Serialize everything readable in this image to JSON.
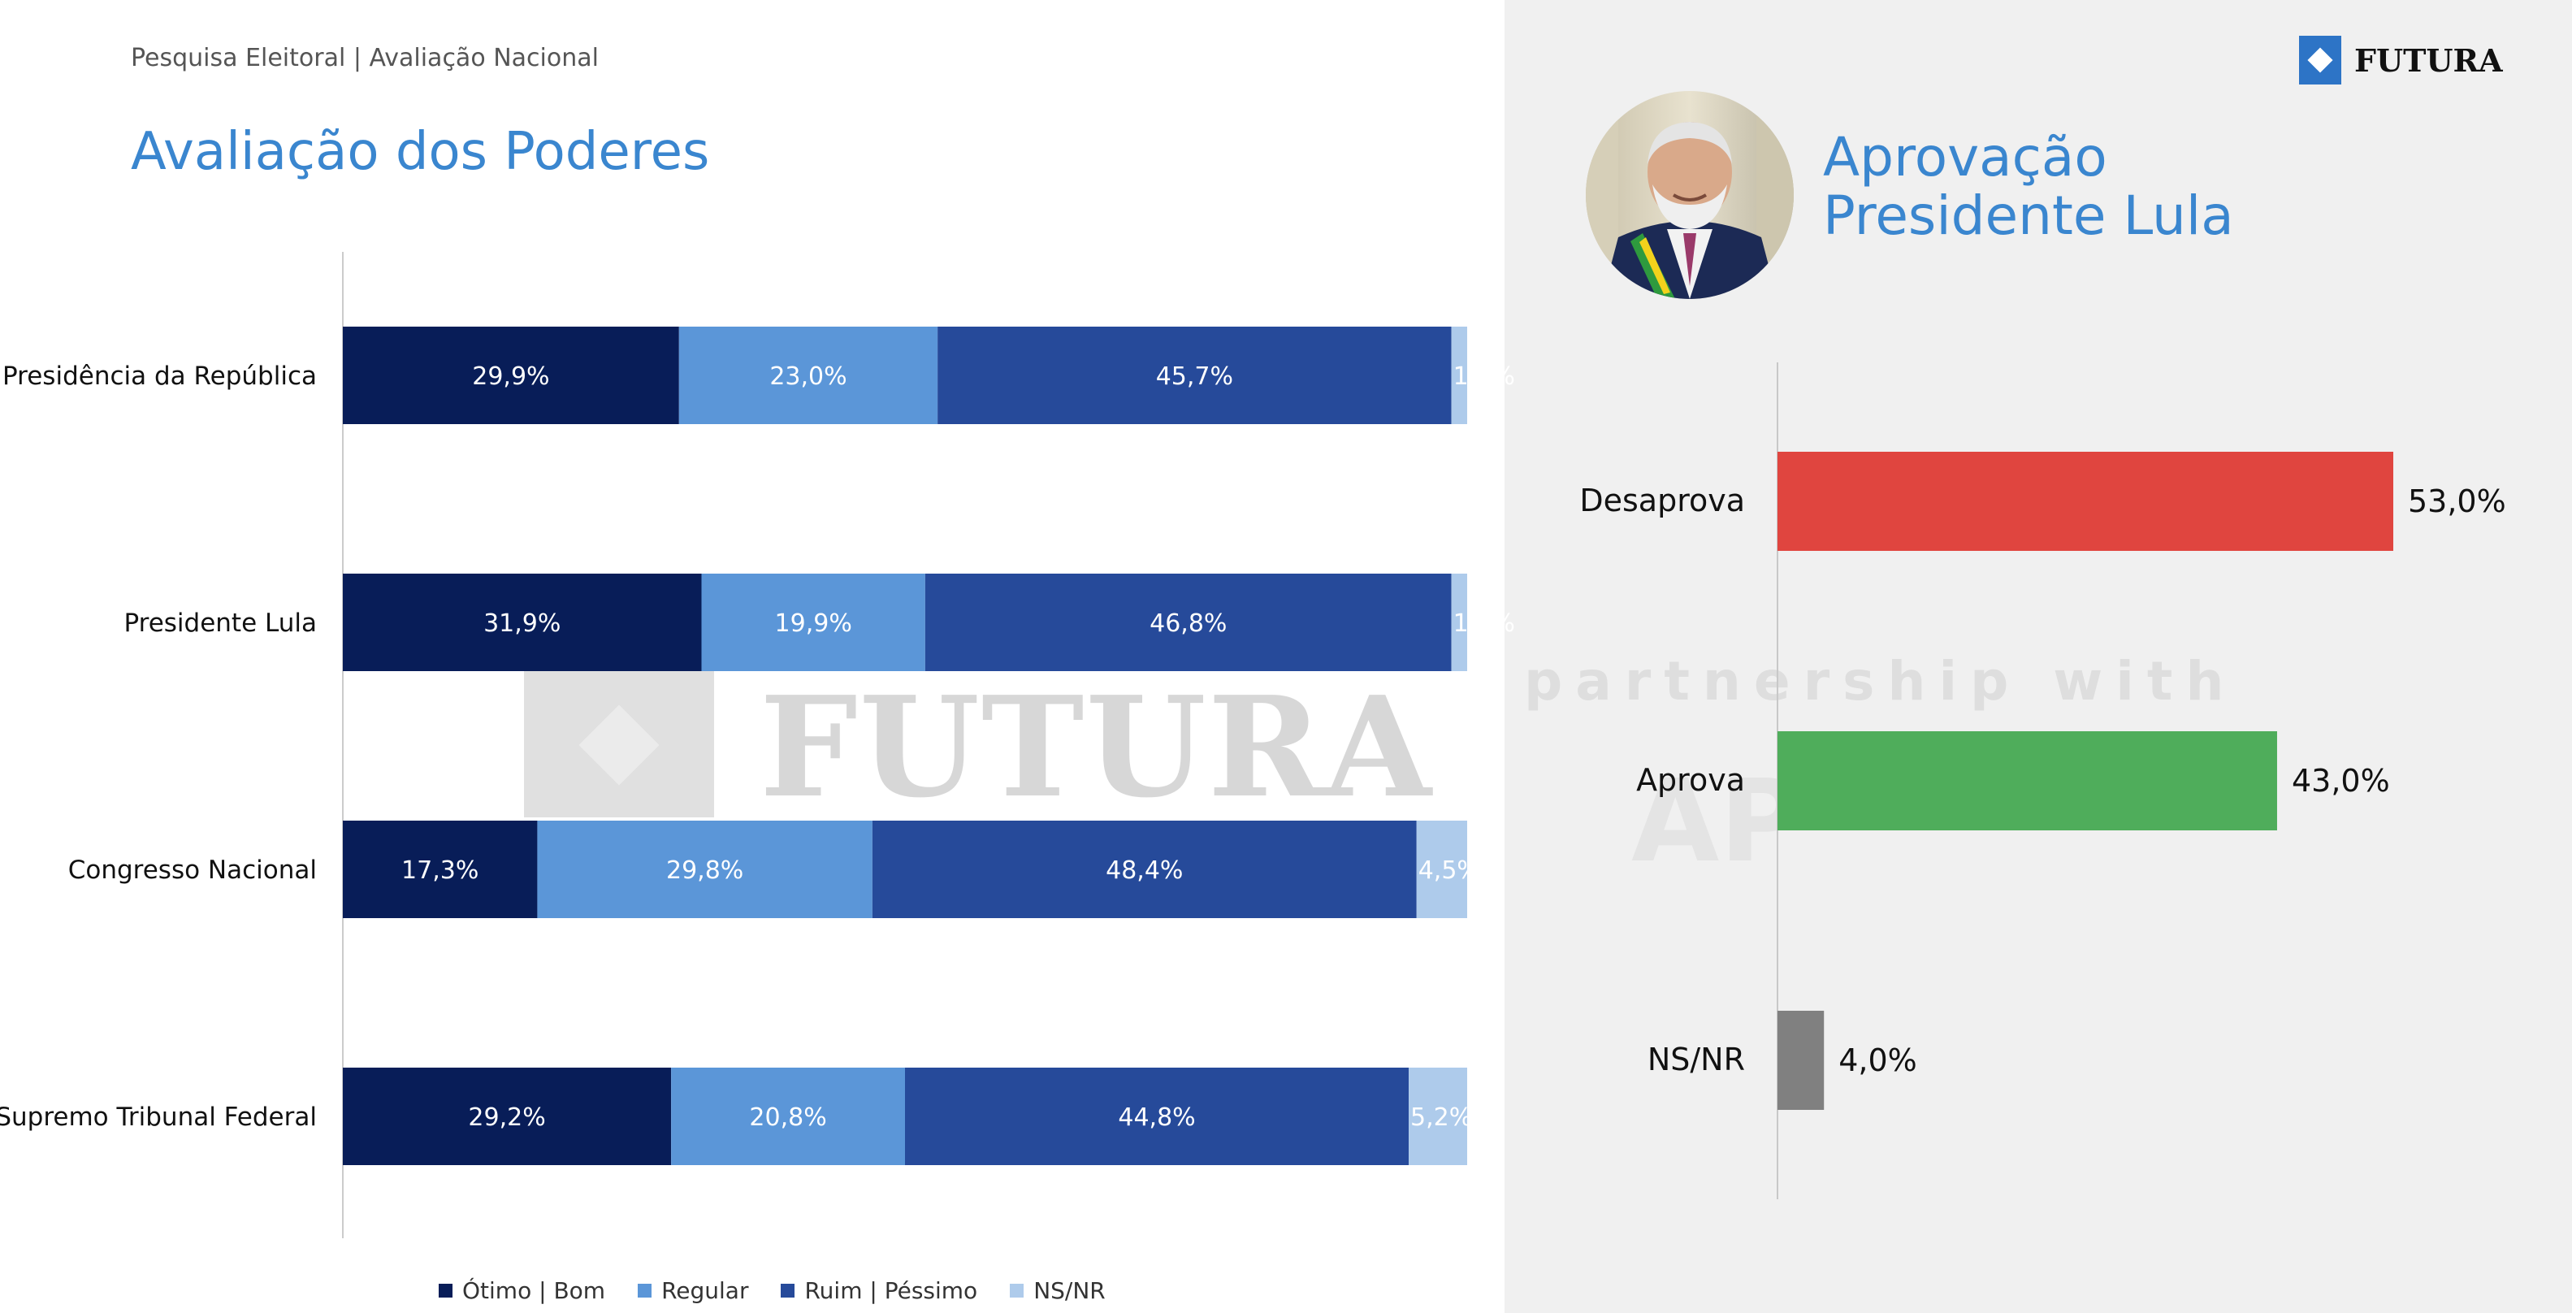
{
  "header": {
    "subtitle": "Pesquisa Eleitoral | Avaliação Nacional",
    "title": "Avaliação dos Poderes",
    "logo_text": "FUTURA"
  },
  "right_header": {
    "title_line1": "Aprovação",
    "title_line2": "Presidente Lula"
  },
  "watermarks": {
    "futura": "FUTURA",
    "partnership": "partnership with",
    "ap": "AP"
  },
  "colors": {
    "otimo_bom": "#081d58",
    "regular": "#5b96d8",
    "ruim_pessimo": "#264a9a",
    "ns_nr": "#aecbeb",
    "desaprova": "#e0453f",
    "aprova": "#4fad5b",
    "nsnr_bar": "#808080",
    "title_blue": "#3a86cf"
  },
  "chart_data": [
    {
      "type": "bar",
      "orientation": "horizontal",
      "stacked": true,
      "title": "Avaliação dos Poderes",
      "categories": [
        "Presidência da República",
        "Presidente Lula",
        "Congresso Nacional",
        "Supremo Tribunal Federal"
      ],
      "series": [
        {
          "name": "Ótimo | Bom",
          "values": [
            29.9,
            31.9,
            17.3,
            29.2
          ],
          "labels": [
            "29,9%",
            "31,9%",
            "17,3%",
            "29,2%"
          ]
        },
        {
          "name": "Regular",
          "values": [
            23.0,
            19.9,
            29.8,
            20.8
          ],
          "labels": [
            "23,0%",
            "19,9%",
            "29,8%",
            "20,8%"
          ]
        },
        {
          "name": "Ruim | Péssimo",
          "values": [
            45.7,
            46.8,
            48.4,
            44.8
          ],
          "labels": [
            "45,7%",
            "46,8%",
            "48,4%",
            "44,8%"
          ]
        },
        {
          "name": "NS/NR",
          "values": [
            1.4,
            1.4,
            4.5,
            5.2
          ],
          "labels": [
            "1,4%",
            "1,4%",
            "4,5%",
            "5,2%"
          ]
        }
      ],
      "xlim": [
        0,
        100
      ],
      "legend": "bottom"
    },
    {
      "type": "bar",
      "orientation": "horizontal",
      "title": "Aprovação Presidente Lula",
      "categories": [
        "Desaprova",
        "Aprova",
        "NS/NR"
      ],
      "values": [
        53.0,
        43.0,
        4.0
      ],
      "labels": [
        "53,0%",
        "43,0%",
        "4,0%"
      ],
      "xlim": [
        0,
        60
      ]
    }
  ]
}
